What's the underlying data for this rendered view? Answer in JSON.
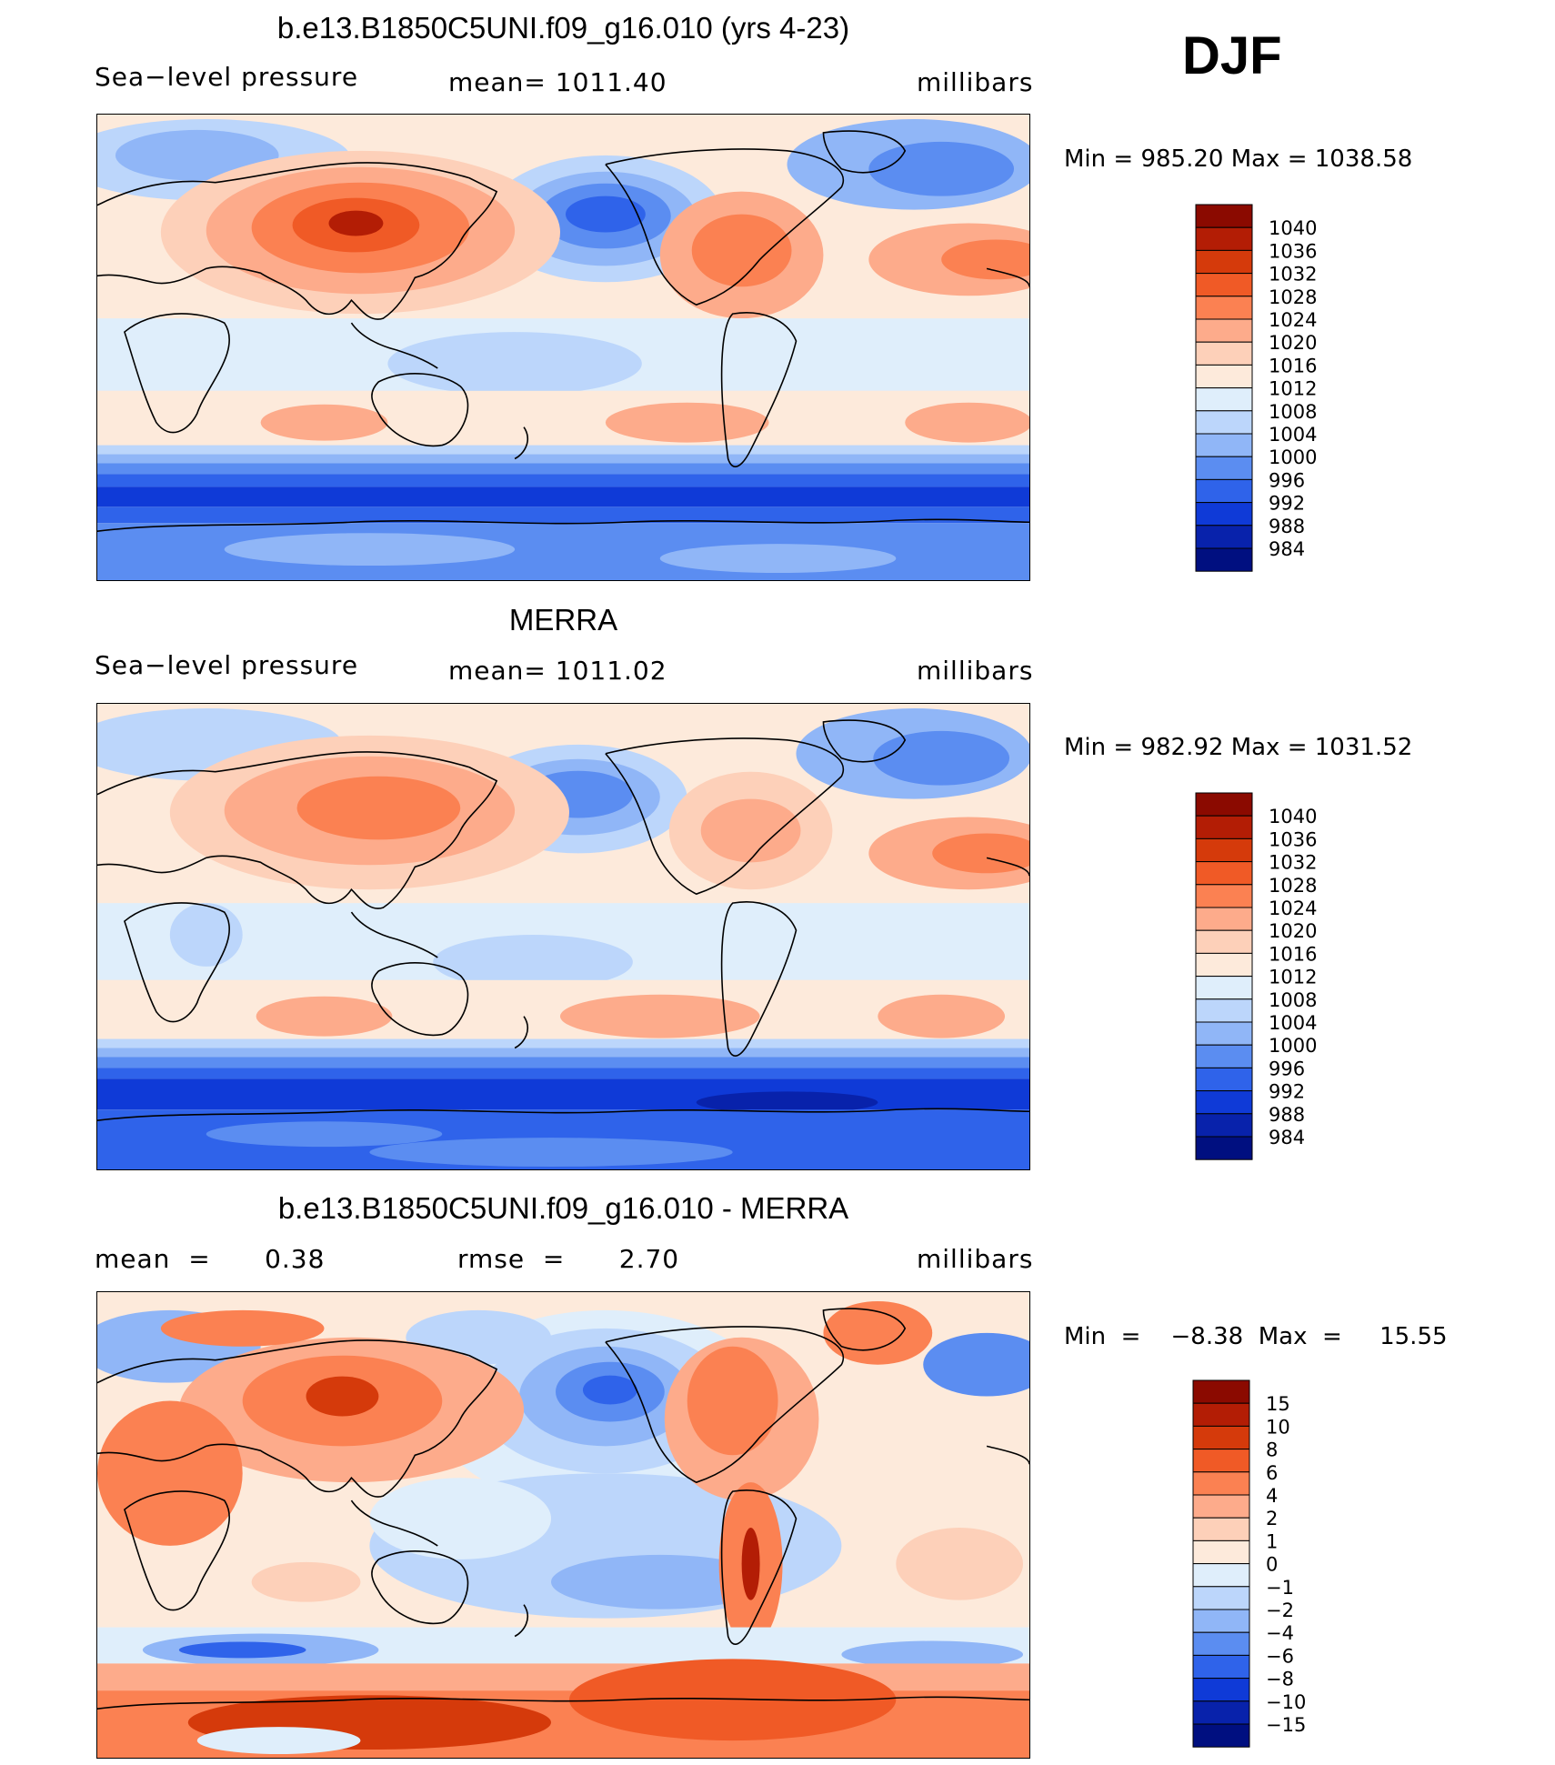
{
  "season": "DJF",
  "panels": [
    {
      "title": "b.e13.B1850C5UNI.f09_g16.010 (yrs 4-23)",
      "left_label": "Sea−level pressure",
      "center_label": "mean=  1011.40",
      "right_label": "millibars",
      "minmax": "Min  =  985.20  Max  =  1038.58",
      "legend_levels": [
        "1040",
        "1036",
        "1032",
        "1028",
        "1024",
        "1020",
        "1016",
        "1012",
        "1008",
        "1004",
        "1000",
        "996",
        "992",
        "988",
        "984"
      ],
      "legend_colors": [
        "#8b0a00",
        "#b31d05",
        "#d53a0b",
        "#f05a26",
        "#fb8152",
        "#fdab8b",
        "#fdd0b9",
        "#fdeadb",
        "#dfeefb",
        "#bcd6fb",
        "#90b6f7",
        "#5b8df1",
        "#2f63ea",
        "#0f3ad7",
        "#0822ab",
        "#000f80"
      ]
    },
    {
      "title": "MERRA",
      "left_label": "Sea−level pressure",
      "center_label": "mean=  1011.02",
      "right_label": "millibars",
      "minmax": "Min  =  982.92  Max  =  1031.52",
      "legend_levels": [
        "1040",
        "1036",
        "1032",
        "1028",
        "1024",
        "1020",
        "1016",
        "1012",
        "1008",
        "1004",
        "1000",
        "996",
        "992",
        "988",
        "984"
      ],
      "legend_colors": [
        "#8b0a00",
        "#b31d05",
        "#d53a0b",
        "#f05a26",
        "#fb8152",
        "#fdab8b",
        "#fdd0b9",
        "#fdeadb",
        "#dfeefb",
        "#bcd6fb",
        "#90b6f7",
        "#5b8df1",
        "#2f63ea",
        "#0f3ad7",
        "#0822ab",
        "#000f80"
      ]
    },
    {
      "title": "b.e13.B1850C5UNI.f09_g16.010 - MERRA",
      "left_label": "mean  =      0.38",
      "center_label": "rmse  =      2.70",
      "right_label": "millibars",
      "minmax": "Min  =    −8.38  Max  =     15.55",
      "legend_levels": [
        "15",
        "10",
        "8",
        "6",
        "4",
        "2",
        "1",
        "0",
        "−1",
        "−2",
        "−4",
        "−6",
        "−8",
        "−10",
        "−15"
      ],
      "legend_colors": [
        "#8b0a00",
        "#b31d05",
        "#d53a0b",
        "#f05a26",
        "#fb8152",
        "#fdab8b",
        "#fdd0b9",
        "#fdeadb",
        "#dfeefb",
        "#bcd6fb",
        "#90b6f7",
        "#5b8df1",
        "#2f63ea",
        "#0f3ad7",
        "#0822ab",
        "#000f80"
      ]
    }
  ]
}
